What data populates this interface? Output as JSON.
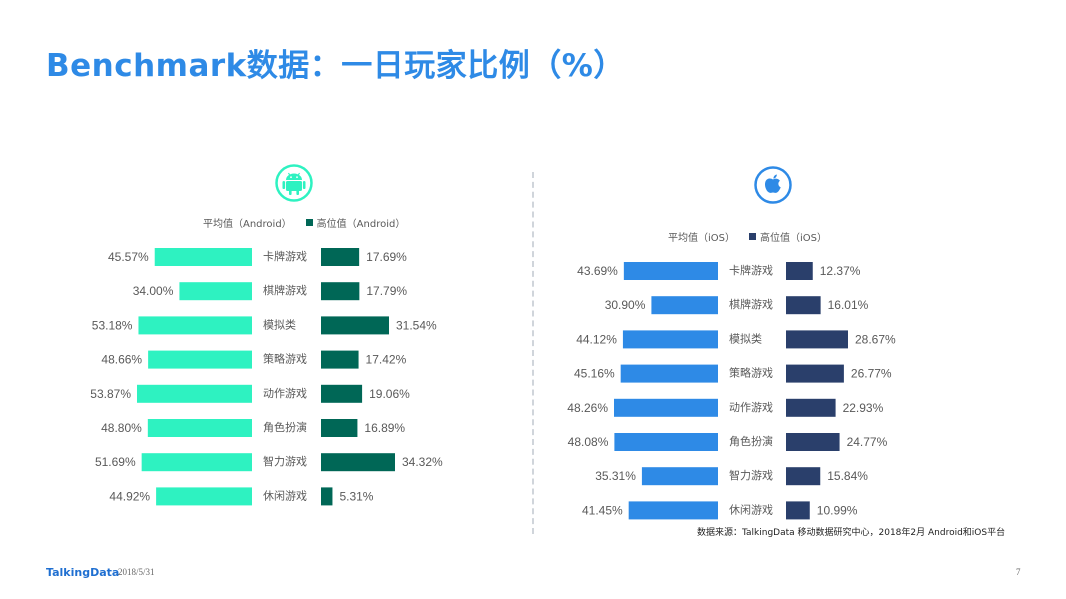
{
  "title": "Benchmark数据：一日玩家比例（%）",
  "colors": {
    "title": "#2E8AE6",
    "android_avg": "#2EF2C1",
    "android_high": "#006756",
    "ios_avg": "#2E8AE6",
    "ios_high": "#2A3F6B"
  },
  "android_icon": "android-icon",
  "ios_icon": "apple-icon",
  "chart_data": [
    {
      "type": "bar",
      "platform": "Android",
      "categories": [
        "卡牌游戏",
        "棋牌游戏",
        "模拟类",
        "策略游戏",
        "动作游戏",
        "角色扮演",
        "智力游戏",
        "休闲游戏"
      ],
      "series": [
        {
          "name": "平均值（Android）",
          "values": [
            45.57,
            34.0,
            53.18,
            48.66,
            53.87,
            48.8,
            51.69,
            44.92
          ],
          "labels": [
            "45.57%",
            "34.00%",
            "53.18%",
            "48.66%",
            "53.87%",
            "48.80%",
            "51.69%",
            "44.92%"
          ]
        },
        {
          "name": "高位值（Android）",
          "values": [
            17.69,
            17.79,
            31.54,
            17.42,
            19.06,
            16.89,
            34.32,
            5.31
          ],
          "labels": [
            "17.69%",
            "17.79%",
            "31.54%",
            "17.42%",
            "19.06%",
            "16.89%",
            "34.32%",
            "5.31%"
          ]
        }
      ]
    },
    {
      "type": "bar",
      "platform": "iOS",
      "categories": [
        "卡牌游戏",
        "棋牌游戏",
        "模拟类",
        "策略游戏",
        "动作游戏",
        "角色扮演",
        "智力游戏",
        "休闲游戏"
      ],
      "series": [
        {
          "name": "平均值（iOS）",
          "values": [
            43.69,
            30.9,
            44.12,
            45.16,
            48.26,
            48.08,
            35.31,
            41.45
          ],
          "labels": [
            "43.69%",
            "30.90%",
            "44.12%",
            "45.16%",
            "48.26%",
            "48.08%",
            "35.31%",
            "41.45%"
          ]
        },
        {
          "name": "高位值（iOS）",
          "values": [
            12.37,
            16.01,
            28.67,
            26.77,
            22.93,
            24.77,
            15.84,
            10.99
          ],
          "labels": [
            "12.37%",
            "16.01%",
            "28.67%",
            "26.77%",
            "22.93%",
            "24.77%",
            "15.84%",
            "10.99%"
          ]
        }
      ]
    }
  ],
  "source": "数据来源：TalkingData 移动数据研究中心，2018年2月 Android和iOS平台",
  "footer": {
    "brand": "TalkingData",
    "date": "2018/5/31",
    "page": "7"
  }
}
